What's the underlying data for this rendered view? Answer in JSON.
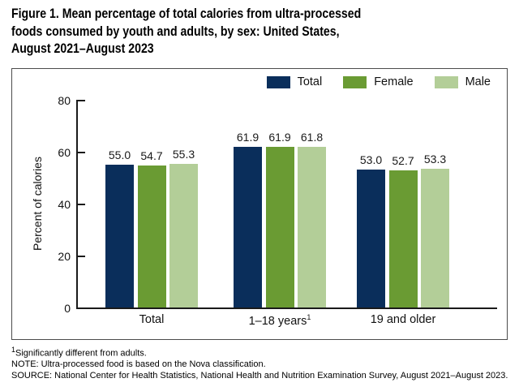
{
  "header": {
    "lines": [
      "Figure 1. Mean percentage of total calories from ultra-processed",
      "foods consumed by youth and adults, by sex: United States,",
      "August 2021–August 2023"
    ]
  },
  "chart_data": {
    "type": "bar",
    "title": "Figure 1. Mean percentage of total calories from ultra-processed foods consumed by youth and adults, by sex: United States, August 2021–August 2023",
    "categories": [
      {
        "label": "Total"
      },
      {
        "label": "1–18 years",
        "sup": "1"
      },
      {
        "label": "19 and older"
      }
    ],
    "series": [
      {
        "name": "Total",
        "color": "#0a2e5b",
        "values": [
          55.0,
          61.9,
          53.0
        ]
      },
      {
        "name": "Female",
        "color": "#6a9b33",
        "values": [
          54.7,
          61.9,
          52.7
        ]
      },
      {
        "name": "Male",
        "color": "#b3ce98",
        "values": [
          55.3,
          61.8,
          53.3
        ]
      }
    ],
    "ylabel": "Percent of calories",
    "xlabel": "",
    "ylim": [
      0,
      80
    ],
    "yticks": [
      0,
      20,
      40,
      60,
      80
    ],
    "grid": false,
    "legend_position": "top-right",
    "value_label_decimals": 1
  },
  "footnotes": [
    {
      "sup": "1",
      "text": "Significantly different from adults."
    },
    {
      "text": "NOTE: Ultra-processed food is based on the Nova classification."
    },
    {
      "text": "SOURCE: National Center for Health Statistics, National Health and Nutrition Examination Survey, August 2021–August 2023."
    }
  ],
  "colors": {
    "axis": "#1a1a1a",
    "panel_border": "#4c4c4c",
    "series_total": "#0a2e5b",
    "series_female": "#6a9b33",
    "series_male": "#b3ce98"
  }
}
